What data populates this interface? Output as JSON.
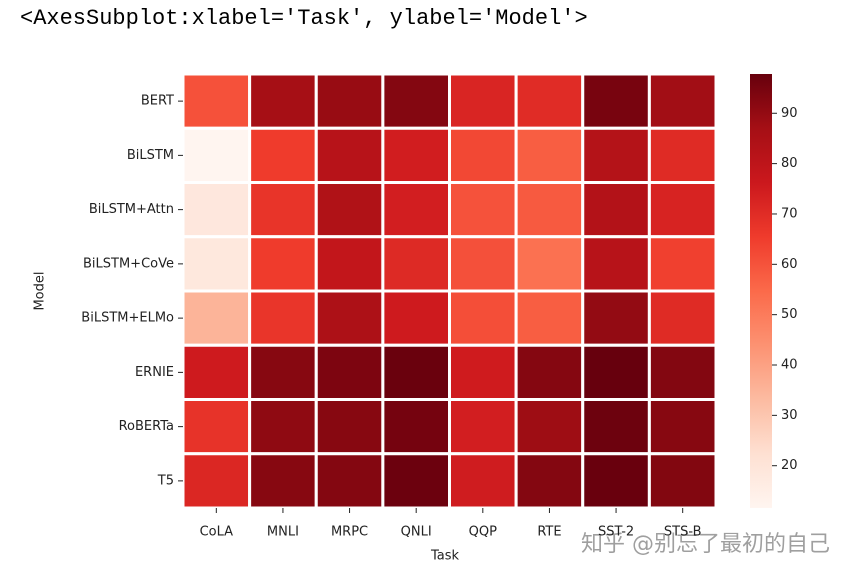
{
  "header": "<AxesSubplot:xlabel='Task', ylabel='Model'>",
  "watermark": "知乎 @别忘了最初的自己",
  "chart_data": {
    "type": "heatmap",
    "xlabel": "Task",
    "ylabel": "Model",
    "colormap": "Reds",
    "x": [
      "CoLA",
      "MNLI",
      "MRPC",
      "QNLI",
      "QQP",
      "RTE",
      "SST-2",
      "STS-B"
    ],
    "y": [
      "BERT",
      "BiLSTM",
      "BiLSTM+Attn",
      "BiLSTM+CoVe",
      "BiLSTM+ELMo",
      "ERNIE",
      "RoBERTa",
      "T5"
    ],
    "values": [
      [
        60.5,
        86.7,
        89.3,
        92.7,
        72.1,
        70.1,
        94.9,
        87.6
      ],
      [
        11.6,
        65.6,
        81.8,
        74.6,
        62.5,
        57.4,
        82.8,
        70.3
      ],
      [
        18.6,
        67.6,
        83.9,
        74.3,
        60.1,
        58.4,
        83.0,
        72.8
      ],
      [
        18.5,
        65.4,
        78.7,
        70.8,
        60.6,
        52.7,
        81.9,
        64.4
      ],
      [
        35.0,
        67.2,
        84.7,
        75.5,
        61.1,
        57.4,
        90.2,
        70.3
      ],
      [
        75.5,
        92.3,
        93.9,
        97.3,
        75.2,
        92.6,
        97.8,
        93.0
      ],
      [
        67.8,
        90.8,
        92.3,
        95.4,
        74.3,
        88.2,
        96.7,
        92.2
      ],
      [
        71.6,
        92.2,
        92.8,
        96.9,
        75.1,
        92.8,
        97.5,
        93.1
      ]
    ],
    "clim": [
      11.6,
      97.8
    ],
    "cticks": [
      20,
      30,
      40,
      50,
      60,
      70,
      80,
      90
    ]
  }
}
